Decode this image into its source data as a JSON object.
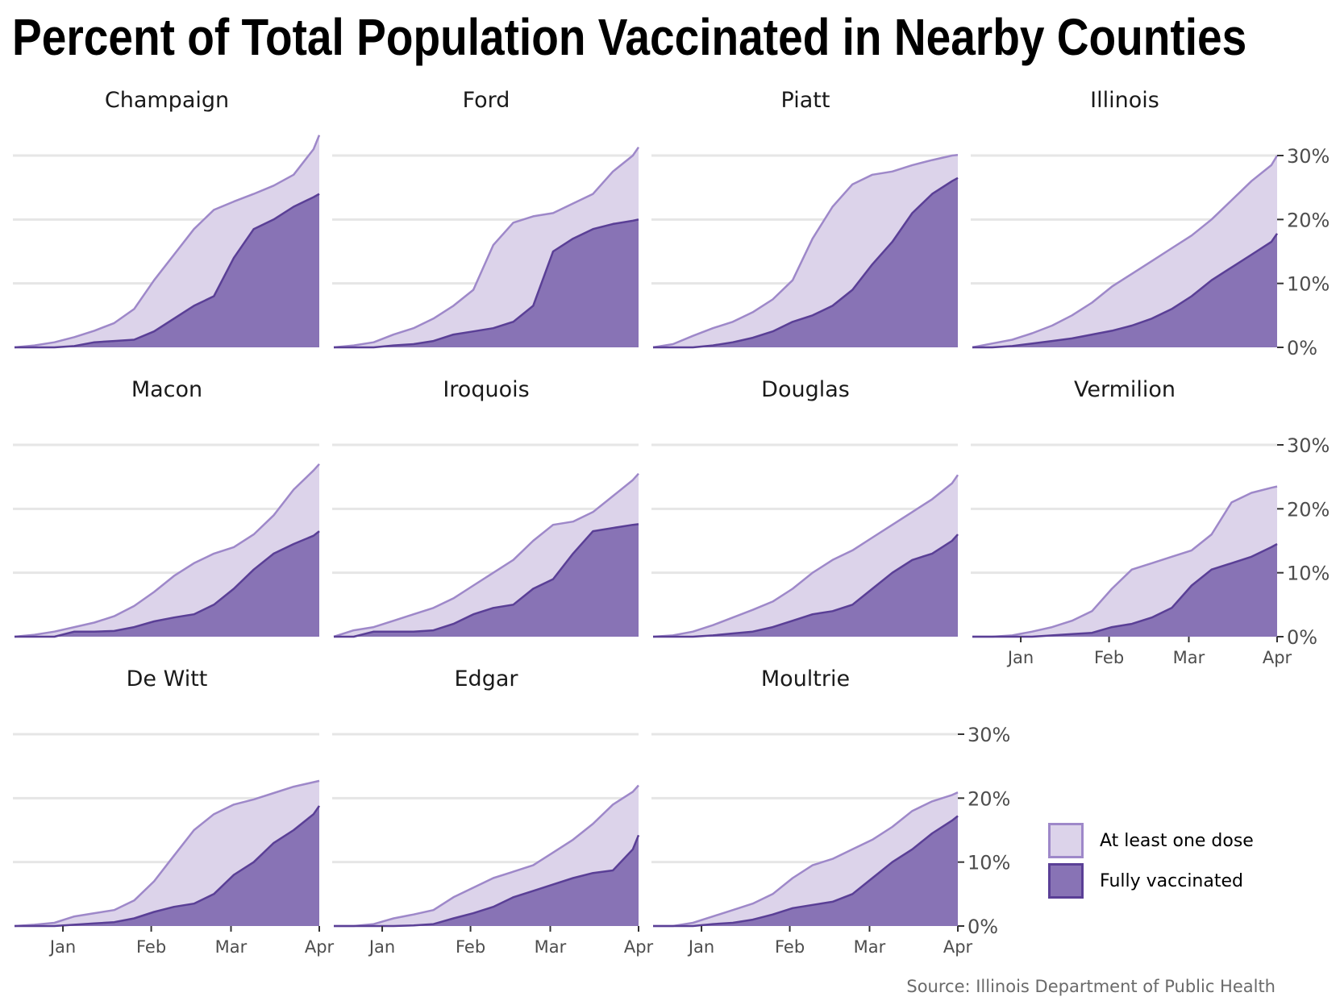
{
  "title": "Percent of Total Population Vaccinated in Nearby Counties",
  "source": "Source: Illinois Department of Public Health",
  "colors": {
    "one_dose_fill": "#dcd3ea",
    "one_dose_line": "#9e88c9",
    "full_fill": "#8873b5",
    "full_line": "#5a3f96",
    "grid": "#e6e6e6"
  },
  "legend": [
    {
      "label": "At least one dose",
      "series": "one_dose"
    },
    {
      "label": "Fully vaccinated",
      "series": "full"
    }
  ],
  "chart_data": {
    "type": "area",
    "facet": true,
    "x_ticks": [
      "Jan",
      "Feb",
      "Mar",
      "Apr"
    ],
    "y_ticks": [
      "0%",
      "10%",
      "20%",
      "30%"
    ],
    "ylim": [
      0,
      30
    ],
    "y_unit": "%",
    "grid": true,
    "legend_position": "bottom-right",
    "x": [
      "Dec 15",
      "Dec 22",
      "Dec 29",
      "Jan 5",
      "Jan 12",
      "Jan 19",
      "Jan 26",
      "Feb 2",
      "Feb 9",
      "Feb 16",
      "Feb 23",
      "Mar 2",
      "Mar 9",
      "Mar 16",
      "Mar 23",
      "Mar 30",
      "Apr 1"
    ],
    "panels": [
      {
        "name": "Champaign",
        "one_dose": [
          0,
          0.3,
          0.8,
          1.6,
          2.6,
          3.8,
          6.0,
          10.5,
          14.5,
          18.5,
          21.5,
          22.8,
          24.0,
          25.3,
          27.0,
          31.0,
          33.2
        ],
        "full": [
          0,
          0,
          0,
          0.2,
          0.8,
          1.0,
          1.2,
          2.5,
          4.5,
          6.5,
          8.0,
          14.0,
          18.5,
          20.0,
          22.0,
          23.5,
          24.0
        ]
      },
      {
        "name": "Ford",
        "one_dose": [
          0,
          0.3,
          0.8,
          2.0,
          3.0,
          4.5,
          6.5,
          9.0,
          16.0,
          19.5,
          20.5,
          21.0,
          22.5,
          24.0,
          27.5,
          30.0,
          31.3
        ],
        "full": [
          0,
          0,
          0,
          0.3,
          0.5,
          1.0,
          2.0,
          2.5,
          3.0,
          4.0,
          6.5,
          15.0,
          17.0,
          18.5,
          19.3,
          19.8,
          20.0
        ]
      },
      {
        "name": "Piatt",
        "one_dose": [
          0,
          0.5,
          1.8,
          3.0,
          4.0,
          5.5,
          7.5,
          10.5,
          17.0,
          22.0,
          25.5,
          27.0,
          27.5,
          28.5,
          29.3,
          30.0,
          30.1
        ],
        "full": [
          0,
          0,
          0,
          0.3,
          0.8,
          1.5,
          2.5,
          4.0,
          5.0,
          6.5,
          9.0,
          13.0,
          16.5,
          21.0,
          24.0,
          26.0,
          26.5
        ]
      },
      {
        "name": "Illinois",
        "one_dose": [
          0,
          0.6,
          1.2,
          2.2,
          3.4,
          5.0,
          7.0,
          9.5,
          11.5,
          13.5,
          15.5,
          17.5,
          20.0,
          23.0,
          26.0,
          28.5,
          30.0
        ],
        "full": [
          0,
          0,
          0.2,
          0.6,
          1.0,
          1.4,
          2.0,
          2.6,
          3.4,
          4.5,
          6.0,
          8.0,
          10.5,
          12.5,
          14.5,
          16.5,
          17.8
        ]
      },
      {
        "name": "Macon",
        "one_dose": [
          0,
          0.3,
          0.8,
          1.5,
          2.2,
          3.2,
          4.8,
          7.0,
          9.5,
          11.5,
          13.0,
          14.0,
          16.0,
          19.0,
          23.0,
          26.0,
          27.0
        ],
        "full": [
          0,
          0,
          0,
          0.8,
          0.8,
          0.9,
          1.5,
          2.4,
          3.0,
          3.5,
          5.0,
          7.5,
          10.5,
          13.0,
          14.5,
          15.8,
          16.5
        ]
      },
      {
        "name": "Iroquois",
        "one_dose": [
          0,
          1.0,
          1.5,
          2.5,
          3.5,
          4.5,
          6.0,
          8.0,
          10.0,
          12.0,
          15.0,
          17.5,
          18.0,
          19.5,
          22.0,
          24.5,
          25.5
        ],
        "full": [
          0,
          0,
          0.8,
          0.8,
          0.8,
          1.0,
          2.0,
          3.5,
          4.5,
          5.0,
          7.5,
          9.0,
          13.0,
          16.5,
          17.0,
          17.5,
          17.6
        ]
      },
      {
        "name": "Douglas",
        "one_dose": [
          0,
          0.2,
          0.8,
          1.8,
          3.0,
          4.2,
          5.5,
          7.5,
          10.0,
          12.0,
          13.5,
          15.5,
          17.5,
          19.5,
          21.5,
          24.0,
          25.3
        ],
        "full": [
          0,
          0,
          0,
          0.2,
          0.5,
          0.8,
          1.5,
          2.5,
          3.5,
          4.0,
          5.0,
          7.5,
          10.0,
          12.0,
          13.0,
          15.0,
          16.0
        ]
      },
      {
        "name": "Vermilion",
        "one_dose": [
          0,
          0,
          0.2,
          0.8,
          1.5,
          2.5,
          4.0,
          7.5,
          10.5,
          11.5,
          12.5,
          13.5,
          16.0,
          21.0,
          22.5,
          23.3,
          23.5
        ],
        "full": [
          0,
          0,
          0,
          0,
          0.2,
          0.4,
          0.6,
          1.5,
          2.0,
          3.0,
          4.5,
          8.0,
          10.5,
          11.5,
          12.5,
          14.0,
          14.5
        ]
      },
      {
        "name": "De Witt",
        "one_dose": [
          0,
          0.2,
          0.5,
          1.5,
          2.0,
          2.5,
          4.0,
          7.0,
          11.0,
          15.0,
          17.5,
          19.0,
          19.8,
          20.8,
          21.8,
          22.5,
          22.7
        ],
        "full": [
          0,
          0,
          0,
          0.2,
          0.4,
          0.6,
          1.2,
          2.2,
          3.0,
          3.5,
          5.0,
          8.0,
          10.0,
          13.0,
          15.0,
          17.5,
          18.8
        ]
      },
      {
        "name": "Edgar",
        "one_dose": [
          0,
          0,
          0.3,
          1.2,
          1.8,
          2.5,
          4.5,
          6.0,
          7.5,
          8.5,
          9.5,
          11.5,
          13.5,
          16.0,
          19.0,
          21.0,
          22.0
        ],
        "full": [
          0,
          0,
          0,
          0,
          0.1,
          0.3,
          1.2,
          2.0,
          3.0,
          4.5,
          5.5,
          6.5,
          7.5,
          8.3,
          8.7,
          12.0,
          14.2
        ]
      },
      {
        "name": "Moultrie",
        "one_dose": [
          0,
          0,
          0.5,
          1.5,
          2.5,
          3.5,
          5.0,
          7.5,
          9.5,
          10.5,
          12.0,
          13.5,
          15.5,
          18.0,
          19.5,
          20.5,
          20.9
        ],
        "full": [
          0,
          0,
          0,
          0.3,
          0.5,
          1.0,
          1.8,
          2.8,
          3.3,
          3.8,
          5.0,
          7.5,
          10.0,
          12.0,
          14.5,
          16.5,
          17.2
        ]
      }
    ]
  }
}
